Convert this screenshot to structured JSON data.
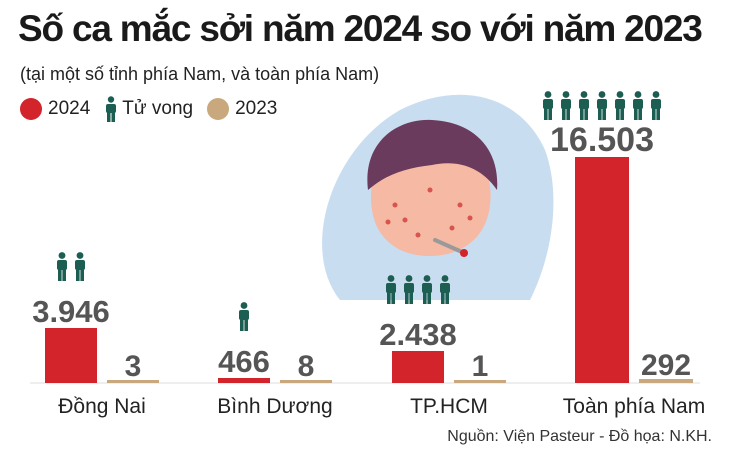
{
  "title": "Số ca mắc sởi năm 2024 so với năm 2023",
  "subtitle": "(tại một số tỉnh phía Nam, và toàn phía Nam)",
  "legend": {
    "item_2024": "2024",
    "item_deaths": "Tử vong",
    "item_2023": "2023"
  },
  "source": "Nguồn:  Viện Pasteur - Đồ họa: N.KH.",
  "colors": {
    "bar_2024": "#d3232b",
    "bar_2023": "#c8a87c",
    "deaths": "#1d5e52",
    "illustration_bg": "#c9ddf0"
  },
  "chart_data": {
    "type": "bar",
    "categories": [
      "Đồng Nai",
      "Bình Dương",
      "TP.HCM",
      "Toàn phía Nam"
    ],
    "series": [
      {
        "name": "2024",
        "values": [
          3946,
          466,
          2438,
          16503
        ],
        "labels": [
          "3.946",
          "466",
          "2.438",
          "16.503"
        ]
      },
      {
        "name": "2023",
        "values": [
          3,
          8,
          1,
          292
        ],
        "labels": [
          "3",
          "8",
          "1",
          "292"
        ]
      }
    ],
    "deaths": [
      2,
      1,
      4,
      7
    ],
    "ylim": [
      0,
      16503
    ]
  }
}
